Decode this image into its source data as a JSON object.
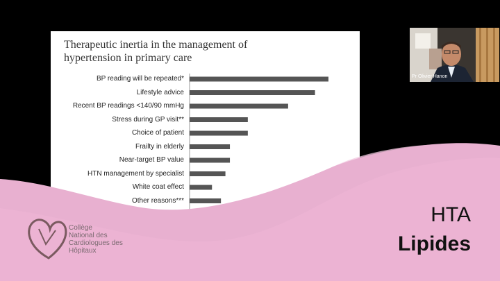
{
  "slide": {
    "title_line1": "Therapeutic inertia in the management of",
    "title_line2": "hypertension in primary care"
  },
  "chart_data": {
    "type": "bar",
    "orientation": "horizontal",
    "categories": [
      "BP reading will be repeated*",
      "Lifestyle advice",
      "Recent BP readings <140/90 mmHg",
      "Stress during GP visit**",
      "Choice of patient",
      "Frailty in elderly",
      "Near-target BP value",
      "HTN management by specialist",
      "White coat effect",
      "Other reasons***"
    ],
    "values": [
      46.5,
      42,
      33,
      19.5,
      19.5,
      13.5,
      13.5,
      12,
      7.5,
      10.5
    ],
    "x_ticks": [
      "0",
      "5"
    ],
    "xlim": [
      0,
      50
    ],
    "bar_color": "#555555"
  },
  "webcam": {
    "presenter_name": "Pr Olivier Hanon"
  },
  "logo": {
    "line1": "Collège",
    "line2": "National des",
    "line3": "Cardiologues des",
    "line4": "Hôpitaux"
  },
  "brand": {
    "line1": "HTA",
    "line2": "Lipides"
  },
  "colors": {
    "pink": "#e8b0d0",
    "pink_light": "#f2c9e0",
    "background": "#000000"
  }
}
